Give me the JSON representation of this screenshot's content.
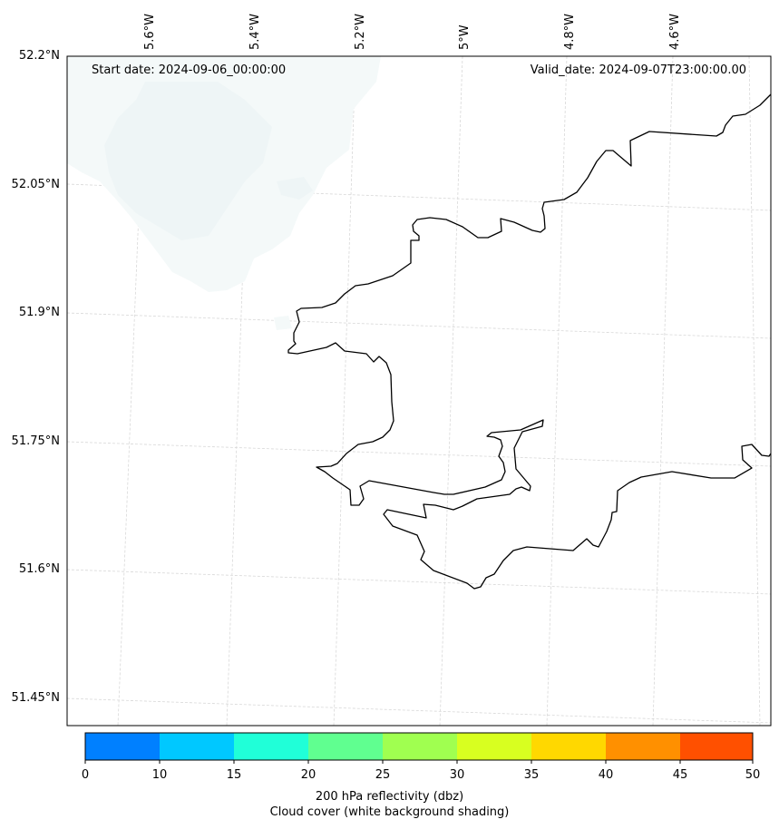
{
  "header": {
    "start_date": "Start date: 2024-09-06_00:00:00",
    "valid_date": "Valid_date: 2024-09-07T23:00:00.00"
  },
  "axes": {
    "lon_labels": [
      "5.6°W",
      "5.4°W",
      "5.2°W",
      "5°W",
      "4.8°W",
      "4.6°W"
    ],
    "lat_labels": [
      "52.2°N",
      "52.05°N",
      "51.9°N",
      "51.75°N",
      "51.6°N",
      "51.45°N"
    ]
  },
  "colorbar": {
    "ticks": [
      "0",
      "10",
      "15",
      "20",
      "25",
      "30",
      "35",
      "40",
      "45",
      "50"
    ],
    "colors": [
      "#0080ff",
      "#00c8ff",
      "#20ffd8",
      "#60ff90",
      "#a0ff50",
      "#d8ff20",
      "#ffd800",
      "#ff9000",
      "#ff5000"
    ],
    "title_line1": "200 hPa reflectivity (dbz)",
    "title_line2": "Cloud cover (white background shading)"
  },
  "style": {
    "coastline_color": "#000000",
    "cloud_color": "#f2f8f8",
    "grid_color": "#d8d8d8"
  }
}
